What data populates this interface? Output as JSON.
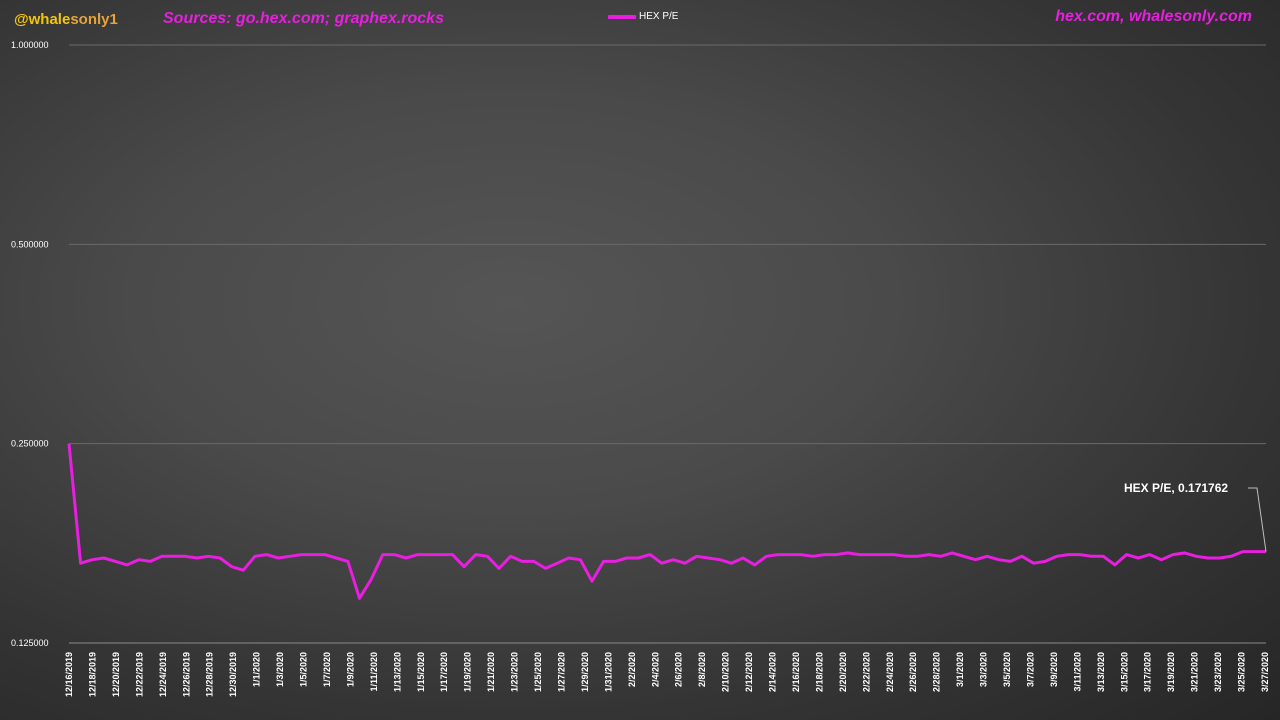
{
  "header": {
    "brand_part1": "@whale",
    "brand_part2": "sonly1",
    "sources": "Sources: go.hex.com; graphex.rocks",
    "site": "hex.com, whalesonly.com"
  },
  "colors": {
    "series": "#e81ee0",
    "gridline": "#6a6a6a",
    "tick_text": "#ffffff"
  },
  "chart_data": {
    "type": "line",
    "title": "",
    "xlabel": "",
    "ylabel": "",
    "y_scale": "log2",
    "ylim": [
      0.125,
      1.0
    ],
    "y_ticks": [
      "1.000000",
      "0.500000",
      "0.250000",
      "0.125000"
    ],
    "y_tick_values": [
      1.0,
      0.5,
      0.25,
      0.125
    ],
    "grid": true,
    "legend_position": "top-center",
    "x_tick_labels": [
      "12/16/2019",
      "12/18/2019",
      "12/20/2019",
      "12/22/2019",
      "12/24/2019",
      "12/26/2019",
      "12/28/2019",
      "12/30/2019",
      "1/1/2020",
      "1/3/2020",
      "1/5/2020",
      "1/7/2020",
      "1/9/2020",
      "1/11/2020",
      "1/13/2020",
      "1/15/2020",
      "1/17/2020",
      "1/19/2020",
      "1/21/2020",
      "1/23/2020",
      "1/25/2020",
      "1/27/2020",
      "1/29/2020",
      "1/31/2020",
      "2/2/2020",
      "2/4/2020",
      "2/6/2020",
      "2/8/2020",
      "2/10/2020",
      "2/12/2020",
      "2/14/2020",
      "2/16/2020",
      "2/18/2020",
      "2/20/2020",
      "2/22/2020",
      "2/24/2020",
      "2/26/2020",
      "2/28/2020",
      "3/1/2020",
      "3/3/2020",
      "3/5/2020",
      "3/7/2020",
      "3/9/2020",
      "3/11/2020",
      "3/13/2020",
      "3/15/2020",
      "3/17/2020",
      "3/19/2020",
      "3/21/2020",
      "3/23/2020",
      "3/25/2020",
      "3/27/2020"
    ],
    "series": [
      {
        "name": "HEX P/E",
        "values": [
          0.25,
          0.165,
          0.167,
          0.168,
          0.166,
          0.164,
          0.167,
          0.166,
          0.169,
          0.169,
          0.169,
          0.168,
          0.169,
          0.168,
          0.163,
          0.161,
          0.169,
          0.17,
          0.168,
          0.169,
          0.17,
          0.17,
          0.17,
          0.168,
          0.166,
          0.146,
          0.156,
          0.17,
          0.17,
          0.168,
          0.17,
          0.17,
          0.17,
          0.17,
          0.163,
          0.17,
          0.169,
          0.162,
          0.169,
          0.166,
          0.166,
          0.162,
          0.165,
          0.168,
          0.167,
          0.155,
          0.166,
          0.166,
          0.168,
          0.168,
          0.17,
          0.165,
          0.167,
          0.165,
          0.169,
          0.168,
          0.167,
          0.165,
          0.168,
          0.164,
          0.169,
          0.17,
          0.17,
          0.17,
          0.169,
          0.17,
          0.17,
          0.171,
          0.17,
          0.17,
          0.17,
          0.17,
          0.169,
          0.169,
          0.17,
          0.169,
          0.171,
          0.169,
          0.167,
          0.169,
          0.167,
          0.166,
          0.169,
          0.165,
          0.166,
          0.169,
          0.17,
          0.17,
          0.169,
          0.169,
          0.164,
          0.17,
          0.168,
          0.17,
          0.167,
          0.17,
          0.171,
          0.169,
          0.168,
          0.168,
          0.169,
          0.171762,
          0.171762,
          0.171762
        ]
      }
    ],
    "annotations": [
      {
        "series": "HEX P/E",
        "label": "HEX P/E, 0.171762"
      }
    ]
  }
}
